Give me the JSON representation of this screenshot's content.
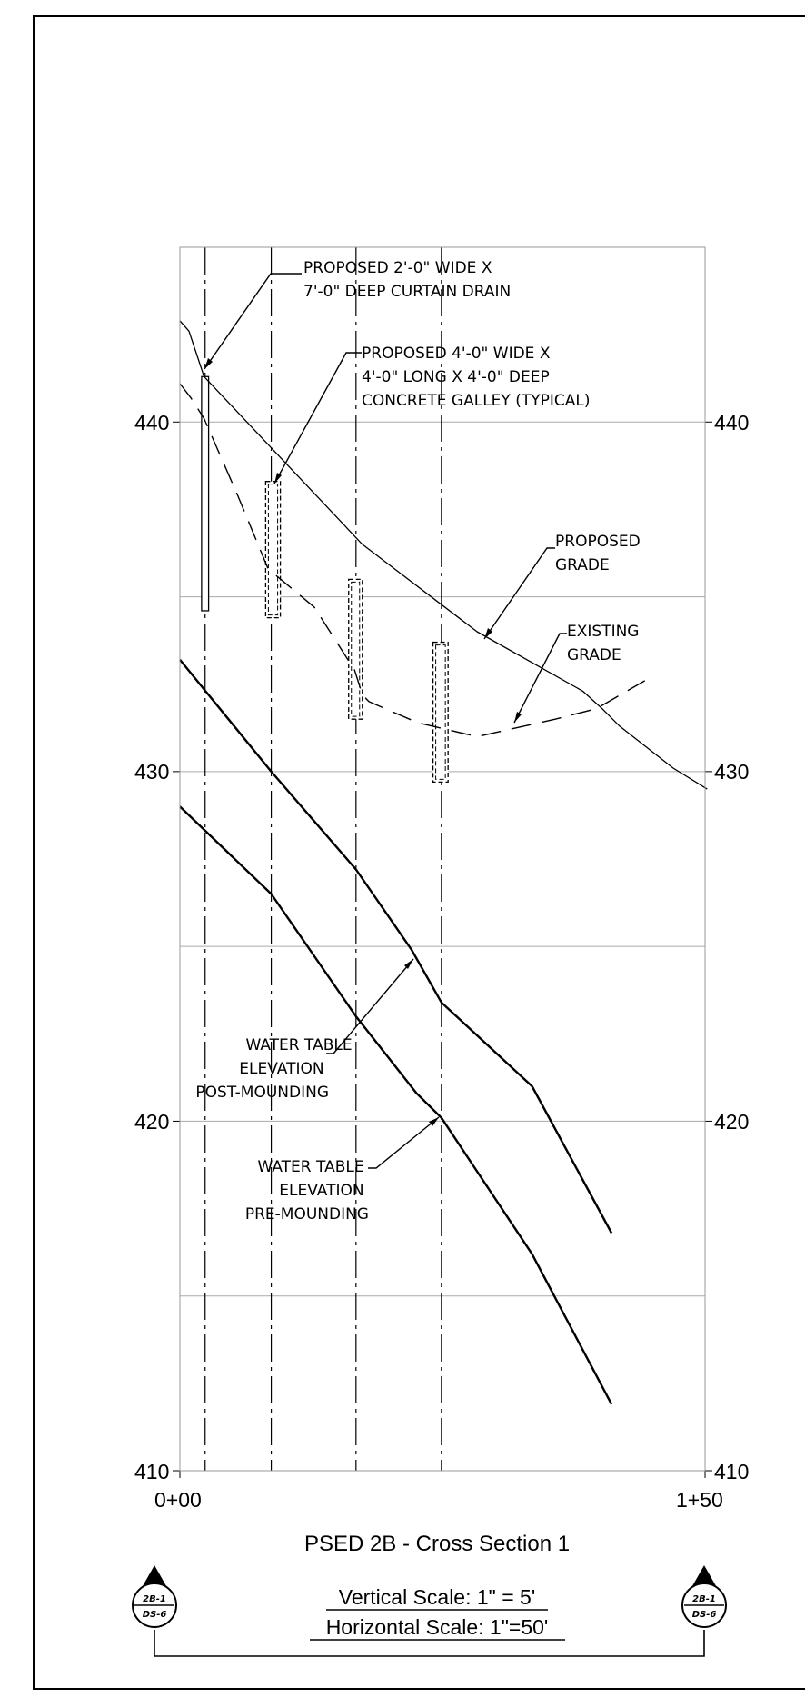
{
  "title": "PSED 2B - Cross Section 1",
  "scales": {
    "vertical": "Vertical Scale: 1\" = 5'",
    "horizontal": "Horizontal Scale: 1\"=50'"
  },
  "section_symbol": {
    "top": "2B-1",
    "bottom": "DS-6"
  },
  "axes": {
    "y_ticks": [
      "440",
      "430",
      "420",
      "410"
    ],
    "x_ticks": [
      "0+00",
      "1+50"
    ]
  },
  "labels": {
    "curtain_drain": [
      "PROPOSED 2'-0\" WIDE X",
      "7'-0\" DEEP CURTAIN DRAIN"
    ],
    "galley": [
      "PROPOSED 4'-0\" WIDE X",
      "4'-0\" LONG X 4'-0\" DEEP",
      "CONCRETE GALLEY (TYPICAL)"
    ],
    "proposed_grade": [
      "PROPOSED",
      "GRADE"
    ],
    "existing_grade": [
      "EXISTING",
      "GRADE"
    ],
    "wt_post": [
      "WATER TABLE",
      "ELEVATION",
      "POST-MOUNDING"
    ],
    "wt_pre": [
      "WATER TABLE",
      "ELEVATION",
      "PRE-MOUNDING"
    ]
  },
  "chart_data": {
    "type": "line",
    "xlabel": "",
    "ylabel": "",
    "xlim": [
      0,
      150
    ],
    "ylim": [
      410,
      445
    ],
    "series": [
      {
        "x": [
          0,
          2.6,
          6.9,
          52.1,
          84.9,
          115.1,
          120.6,
          125.6,
          140.9,
          150.6
        ],
        "y": [
          442.9,
          442.6,
          441.3,
          436.5,
          434.0,
          432.3,
          431.8,
          431.3,
          430.1,
          429.5
        ]
      },
      {
        "x": [
          0,
          3.1,
          6.9,
          16.5,
          25.2,
          38.4,
          49.9,
          52.1,
          54.0,
          67.9,
          84.9,
          107.2,
          119.0,
          132.8
        ],
        "y": [
          441.1,
          440.7,
          440.1,
          437.9,
          435.8,
          434.7,
          432.9,
          432.2,
          432.0,
          431.4,
          431.0,
          431.5,
          431.8,
          432.6
        ]
      },
      {
        "x": [
          0,
          26.1,
          50.3,
          66.2,
          74.7,
          100.6,
          123.3
        ],
        "y": [
          433.2,
          430.0,
          427.2,
          424.9,
          423.4,
          421.0,
          416.8
        ]
      },
      {
        "x": [
          0,
          26.1,
          50.3,
          67.6,
          74.7,
          100.6,
          123.3
        ],
        "y": [
          429.0,
          426.5,
          423.0,
          420.8,
          420.1,
          416.2,
          411.9
        ]
      }
    ],
    "drains": [
      {
        "x": [
          6.2,
          8.2
        ],
        "y_top": 441.3,
        "y_bottom": 434.6,
        "style": "solid"
      },
      {
        "x": [
          24.5,
          28.7
        ],
        "y_top": 438.3,
        "y_bottom": 434.4,
        "style": "dashed"
      },
      {
        "x": [
          48.2,
          52.1
        ],
        "y_top": 435.5,
        "y_bottom": 431.5,
        "style": "dashed"
      },
      {
        "x": [
          72.3,
          76.6
        ],
        "y_top": 433.7,
        "y_bottom": 429.7,
        "style": "dashed"
      }
    ],
    "vertical_lines_x": [
      7.2,
      26.1,
      50.3,
      74.7
    ],
    "horizontal_grid_y": [
      440,
      435,
      430,
      425,
      420,
      415
    ]
  }
}
